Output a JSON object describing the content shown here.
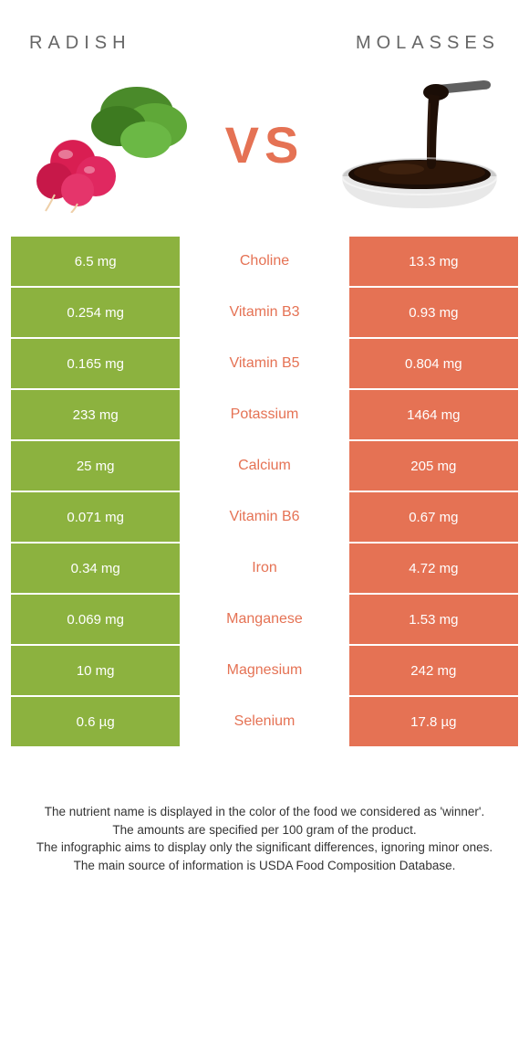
{
  "header": {
    "left_title": "radish",
    "right_title": "molasses",
    "vs_label": "VS"
  },
  "colors": {
    "left_cell_bg": "#8cb23f",
    "right_cell_bg": "#e57254",
    "vs_color": "#e57254",
    "left_text_color": "#8cb23f",
    "right_text_color": "#e57254"
  },
  "nutrients": [
    {
      "name": "Choline",
      "left": "6.5 mg",
      "right": "13.3 mg",
      "winner": "right"
    },
    {
      "name": "Vitamin B3",
      "left": "0.254 mg",
      "right": "0.93 mg",
      "winner": "right"
    },
    {
      "name": "Vitamin B5",
      "left": "0.165 mg",
      "right": "0.804 mg",
      "winner": "right"
    },
    {
      "name": "Potassium",
      "left": "233 mg",
      "right": "1464 mg",
      "winner": "right"
    },
    {
      "name": "Calcium",
      "left": "25 mg",
      "right": "205 mg",
      "winner": "right"
    },
    {
      "name": "Vitamin B6",
      "left": "0.071 mg",
      "right": "0.67 mg",
      "winner": "right"
    },
    {
      "name": "Iron",
      "left": "0.34 mg",
      "right": "4.72 mg",
      "winner": "right"
    },
    {
      "name": "Manganese",
      "left": "0.069 mg",
      "right": "1.53 mg",
      "winner": "right"
    },
    {
      "name": "Magnesium",
      "left": "10 mg",
      "right": "242 mg",
      "winner": "right"
    },
    {
      "name": "Selenium",
      "left": "0.6 µg",
      "right": "17.8 µg",
      "winner": "right"
    }
  ],
  "footer": {
    "line1": "The nutrient name is displayed in the color of the food we considered as 'winner'.",
    "line2": "The amounts are specified per 100 gram of the product.",
    "line3": "The infographic aims to display only the significant differences, ignoring minor ones.",
    "line4": "The main source of information is USDA Food Composition Database."
  }
}
